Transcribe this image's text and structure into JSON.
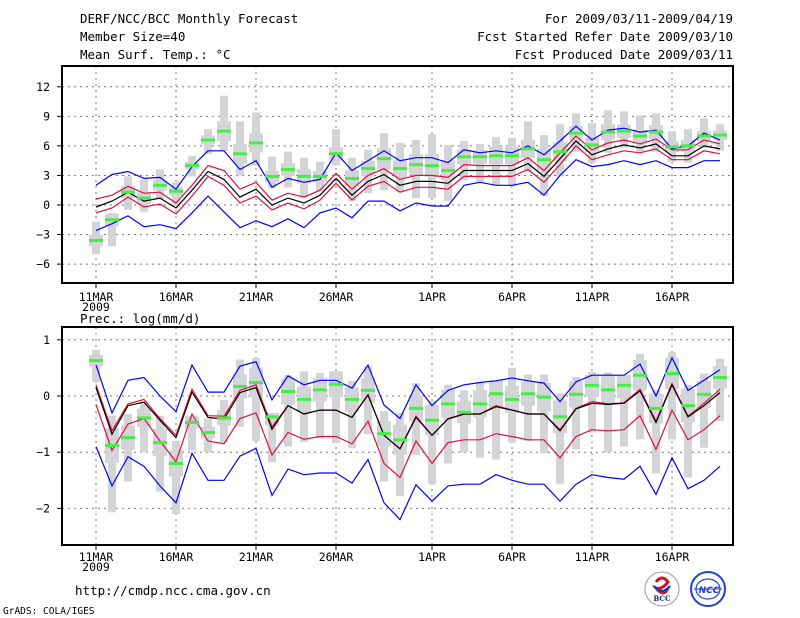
{
  "header": {
    "title": "DERF/NCC/BCC Monthly Forecast",
    "member_size": "Member Size=40",
    "variable": "Mean Surf. Temp.: °C",
    "period": "For 2009/03/11-2009/04/19",
    "started": "Fcst Started Refer Date 2009/03/10",
    "produced": "Fcst Produced Date 2009/03/11"
  },
  "footer": {
    "url": "http://cmdp.ncc.cma.gov.cn",
    "credit": "GrADS: COLA/IGES",
    "logo_bcc": "BCC",
    "logo_ncc": "NCC"
  },
  "colors": {
    "mean": "#000000",
    "spread": "#e0103a",
    "extreme": "#0000ff",
    "obs": "#44ee44",
    "range": "#d3d4d8"
  },
  "chart_data": [
    {
      "type": "line",
      "title": "Mean Surf. Temp.: °C",
      "ylabel": "°C",
      "ylim": [
        -9,
        14
      ],
      "yticks": [
        -6,
        -3,
        0,
        3,
        6,
        9,
        12
      ],
      "ytick_labels": [
        "−6",
        "−3",
        "0",
        "3",
        "6",
        "9",
        "12"
      ],
      "xtick_days": [
        0,
        5,
        10,
        15,
        21,
        26,
        31,
        36
      ],
      "xtick_labels": [
        "11MAR",
        "16MAR",
        "21MAR",
        "26MAR",
        "1APR",
        "6APR",
        "11APR",
        "16APR"
      ],
      "year_label": "2009",
      "grid": true,
      "days": 40,
      "series": [
        {
          "name": "mean",
          "values": [
            -0.2,
            0.4,
            1.3,
            0.4,
            0.7,
            -0.3,
            1.5,
            3.4,
            2.6,
            0.8,
            1.6,
            0.0,
            0.7,
            0.2,
            1.0,
            2.7,
            1.0,
            2.4,
            3.1,
            2.0,
            2.4,
            2.4,
            2.2,
            3.5,
            3.5,
            3.5,
            3.5,
            4.2,
            2.9,
            4.7,
            6.5,
            5.1,
            5.7,
            6.1,
            5.8,
            6.2,
            5.0,
            5.0,
            6.0,
            5.7
          ]
        },
        {
          "name": "spread_upper",
          "values": [
            0.6,
            1.0,
            1.9,
            1.2,
            1.3,
            0.2,
            2.0,
            4.0,
            3.5,
            1.6,
            2.3,
            0.5,
            1.2,
            0.8,
            1.5,
            3.2,
            1.6,
            3.0,
            3.7,
            2.6,
            3.0,
            3.0,
            2.8,
            4.1,
            4.0,
            4.0,
            4.0,
            4.8,
            3.5,
            5.3,
            7.0,
            5.6,
            6.3,
            6.6,
            6.2,
            6.7,
            5.6,
            5.6,
            6.6,
            6.2
          ]
        },
        {
          "name": "spread_lower",
          "values": [
            -0.8,
            -0.3,
            0.8,
            -0.2,
            0.1,
            -0.9,
            0.9,
            2.9,
            2.0,
            0.2,
            0.9,
            -0.5,
            0.2,
            -0.4,
            0.5,
            2.2,
            0.5,
            1.9,
            2.4,
            1.3,
            1.8,
            1.8,
            1.6,
            2.9,
            2.9,
            2.9,
            2.9,
            3.6,
            2.3,
            4.1,
            6.0,
            4.6,
            5.1,
            5.5,
            5.3,
            5.7,
            4.6,
            4.6,
            5.5,
            5.2
          ]
        },
        {
          "name": "max_envelope",
          "values": [
            2.0,
            3.1,
            3.4,
            2.7,
            2.8,
            1.6,
            3.9,
            5.5,
            5.5,
            3.6,
            4.5,
            1.8,
            2.7,
            2.3,
            2.6,
            5.3,
            3.5,
            4.5,
            5.5,
            4.5,
            4.8,
            4.8,
            4.3,
            5.6,
            5.3,
            5.5,
            5.3,
            6.0,
            5.1,
            6.5,
            8.0,
            6.6,
            7.6,
            7.8,
            7.4,
            7.6,
            5.7,
            6.0,
            7.3,
            6.6
          ]
        },
        {
          "name": "min_envelope",
          "values": [
            -2.6,
            -1.9,
            -1.1,
            -2.2,
            -2.0,
            -2.4,
            -0.8,
            0.9,
            -0.7,
            -2.3,
            -1.6,
            -2.2,
            -1.4,
            -2.3,
            -0.8,
            -0.3,
            -1.3,
            0.4,
            0.4,
            -0.6,
            0.2,
            -0.1,
            -0.1,
            2.0,
            2.3,
            2.0,
            2.0,
            2.3,
            1.0,
            3.0,
            4.6,
            3.9,
            4.1,
            4.5,
            4.1,
            4.5,
            3.8,
            3.8,
            4.5,
            4.5
          ]
        },
        {
          "name": "climatology_marker",
          "values": [
            -3.6,
            -1.5,
            1.3,
            0.7,
            2.0,
            1.4,
            4.0,
            6.6,
            7.5,
            5.2,
            6.3,
            2.9,
            3.6,
            2.9,
            2.9,
            5.2,
            2.7,
            3.7,
            4.7,
            3.7,
            4.1,
            4.0,
            3.5,
            4.9,
            4.9,
            5.0,
            5.0,
            5.7,
            4.6,
            5.4,
            7.3,
            6.1,
            7.4,
            7.5,
            7.0,
            7.4,
            5.9,
            6.0,
            7.0,
            7.1
          ]
        },
        {
          "name": "range_high",
          "values": [
            -1.7,
            -0.8,
            2.9,
            2.6,
            3.6,
            2.3,
            5.0,
            7.7,
            11.1,
            8.5,
            9.4,
            4.9,
            5.4,
            4.8,
            4.4,
            7.7,
            4.8,
            5.6,
            7.3,
            6.3,
            6.6,
            7.2,
            6.1,
            6.5,
            6.2,
            6.9,
            6.8,
            8.5,
            7.1,
            8.2,
            9.3,
            8.3,
            9.6,
            9.5,
            9.1,
            9.3,
            7.5,
            7.7,
            8.8,
            8.2
          ]
        },
        {
          "name": "range_low",
          "values": [
            -5.0,
            -4.2,
            -0.5,
            -0.7,
            0.6,
            -0.2,
            2.9,
            5.2,
            5.5,
            3.0,
            4.0,
            1.7,
            1.8,
            0.8,
            1.4,
            4.0,
            0.4,
            1.2,
            1.5,
            1.3,
            0.7,
            0.7,
            0.4,
            2.5,
            2.3,
            2.0,
            1.9,
            3.4,
            0.9,
            2.9,
            5.4,
            4.3,
            5.3,
            5.8,
            5.4,
            5.4,
            4.4,
            4.3,
            5.8,
            5.5
          ]
        }
      ]
    },
    {
      "type": "line",
      "title": "Prec.: log(mm/d)",
      "ylabel": "log(mm/d)",
      "ylim": [
        -2.76,
        1.23
      ],
      "yticks": [
        -2,
        -1,
        0,
        1
      ],
      "ytick_labels": [
        "−2",
        "−1",
        "0",
        "1"
      ],
      "xtick_days": [
        0,
        5,
        10,
        15,
        21,
        26,
        31,
        36
      ],
      "xtick_labels": [
        "11MAR",
        "16MAR",
        "21MAR",
        "26MAR",
        "1APR",
        "6APR",
        "11APR",
        "16APR"
      ],
      "year_label": "2009",
      "grid": true,
      "days": 40,
      "series": [
        {
          "name": "mean",
          "values": [
            0.15,
            -0.68,
            -0.17,
            -0.11,
            -0.43,
            -0.74,
            0.07,
            -0.38,
            -0.41,
            0.06,
            0.15,
            -0.59,
            -0.17,
            -0.32,
            -0.25,
            -0.25,
            -0.38,
            0.02,
            -0.7,
            -0.94,
            -0.38,
            -0.7,
            -0.41,
            -0.32,
            -0.32,
            -0.19,
            -0.25,
            -0.32,
            -0.32,
            -0.62,
            -0.23,
            -0.13,
            -0.15,
            -0.13,
            0.09,
            -0.47,
            0.2,
            -0.37,
            -0.17,
            0.06
          ]
        },
        {
          "name": "spread_upper",
          "values": [
            0.2,
            -0.62,
            -0.14,
            -0.06,
            -0.4,
            -0.7,
            0.12,
            -0.35,
            -0.36,
            0.1,
            0.2,
            -0.55,
            -0.17,
            -0.32,
            -0.25,
            -0.25,
            -0.38,
            0.02,
            -0.7,
            -0.94,
            -0.36,
            -0.7,
            -0.4,
            -0.32,
            -0.32,
            -0.17,
            -0.25,
            -0.32,
            -0.32,
            -0.6,
            -0.22,
            -0.1,
            -0.14,
            -0.12,
            0.12,
            -0.45,
            0.22,
            -0.36,
            -0.13,
            0.12
          ]
        },
        {
          "name": "spread_lower",
          "values": [
            -0.15,
            -0.97,
            -0.5,
            -0.4,
            -0.8,
            -1.17,
            -0.32,
            -0.8,
            -0.85,
            -0.4,
            -0.3,
            -1.05,
            -0.65,
            -0.77,
            -0.72,
            -0.72,
            -0.85,
            -0.45,
            -1.2,
            -1.45,
            -0.8,
            -1.2,
            -0.83,
            -0.78,
            -0.78,
            -0.67,
            -0.72,
            -0.78,
            -0.78,
            -1.1,
            -0.72,
            -0.6,
            -0.62,
            -0.6,
            -0.35,
            -0.95,
            -0.25,
            -0.78,
            -0.6,
            -0.35
          ]
        },
        {
          "name": "max_envelope",
          "values": [
            0.55,
            -0.3,
            0.28,
            0.33,
            0.0,
            -0.28,
            0.55,
            0.07,
            0.07,
            0.53,
            0.61,
            -0.07,
            0.36,
            0.2,
            0.28,
            0.28,
            0.14,
            0.55,
            -0.16,
            -0.4,
            0.2,
            -0.17,
            0.1,
            0.2,
            0.24,
            0.27,
            0.32,
            0.27,
            0.23,
            -0.1,
            0.25,
            0.37,
            0.37,
            0.37,
            0.57,
            0.0,
            0.68,
            0.1,
            0.28,
            0.47
          ]
        },
        {
          "name": "min_envelope",
          "values": [
            -0.9,
            -1.6,
            -1.08,
            -1.25,
            -1.6,
            -1.9,
            -1.02,
            -1.5,
            -1.5,
            -1.07,
            -0.93,
            -1.77,
            -1.3,
            -1.4,
            -1.37,
            -1.37,
            -1.55,
            -1.13,
            -1.9,
            -2.2,
            -1.58,
            -1.87,
            -1.6,
            -1.57,
            -1.57,
            -1.4,
            -1.5,
            -1.57,
            -1.57,
            -1.87,
            -1.57,
            -1.4,
            -1.45,
            -1.48,
            -1.25,
            -1.75,
            -1.1,
            -1.65,
            -1.5,
            -1.25
          ]
        },
        {
          "name": "climatology_marker",
          "values": [
            0.63,
            -0.88,
            -0.74,
            -0.39,
            -0.83,
            -1.2,
            -0.47,
            -0.65,
            -0.39,
            0.17,
            0.24,
            -0.37,
            0.08,
            -0.06,
            0.11,
            0.21,
            -0.06,
            0.1,
            -0.67,
            -0.78,
            -0.22,
            -0.43,
            -0.14,
            -0.29,
            -0.14,
            0.04,
            -0.06,
            0.04,
            -0.02,
            -0.37,
            0.03,
            0.19,
            0.11,
            0.19,
            0.37,
            -0.22,
            0.4,
            -0.17,
            0.03,
            0.33
          ]
        },
        {
          "name": "range_high",
          "values": [
            0.82,
            -0.35,
            -0.32,
            -0.1,
            -0.35,
            -0.8,
            -0.35,
            -0.4,
            -0.07,
            0.65,
            0.68,
            -0.3,
            0.37,
            0.44,
            0.41,
            0.44,
            0.27,
            0.53,
            -0.27,
            -0.3,
            0.23,
            -0.08,
            0.2,
            0.1,
            0.25,
            0.28,
            0.5,
            0.38,
            0.38,
            0.05,
            0.34,
            0.43,
            0.42,
            0.38,
            0.75,
            0.1,
            0.78,
            0.2,
            0.4,
            0.66
          ]
        },
        {
          "name": "range_low",
          "values": [
            0.25,
            -2.07,
            -1.52,
            -1.0,
            -1.7,
            -2.1,
            -0.97,
            -1.0,
            -0.83,
            -0.55,
            -0.8,
            -1.18,
            -0.9,
            -0.82,
            -0.75,
            -0.84,
            -0.93,
            -0.68,
            -1.52,
            -1.78,
            -1.05,
            -1.57,
            -1.2,
            -1.0,
            -1.1,
            -1.13,
            -0.83,
            -0.8,
            -1.02,
            -1.57,
            -0.95,
            -0.65,
            -1.0,
            -0.9,
            -0.77,
            -1.38,
            -0.77,
            -1.45,
            -0.92,
            -0.45
          ]
        }
      ]
    }
  ]
}
